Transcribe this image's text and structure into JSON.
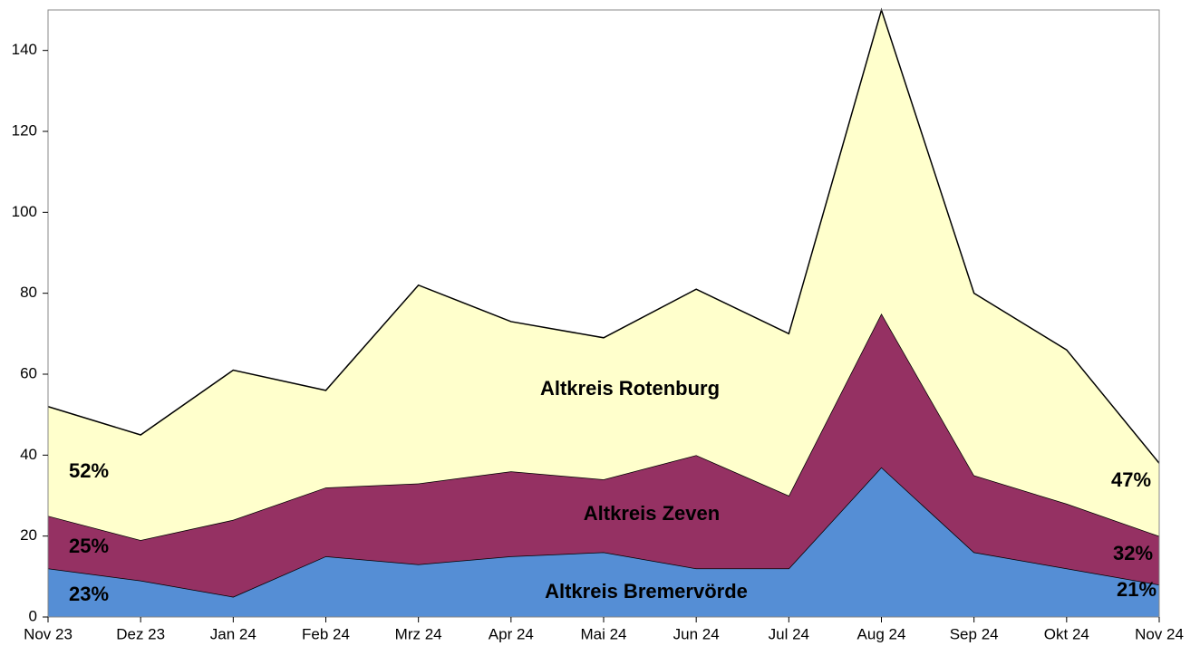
{
  "chart_data": {
    "type": "stacked_area",
    "categories": [
      "Nov 23",
      "Dez 23",
      "Jan 24",
      "Feb 24",
      "Mrz 24",
      "Apr 24",
      "Mai 24",
      "Jun 24",
      "Jul 24",
      "Aug 24",
      "Sep 24",
      "Okt 24",
      "Nov 24"
    ],
    "series": [
      {
        "name": "Altkreis Bremervörde",
        "color": "#558ed5",
        "values": [
          12,
          9,
          5,
          15,
          13,
          15,
          16,
          12,
          12,
          37,
          16,
          12,
          8
        ]
      },
      {
        "name": "Altkreis Zeven",
        "color": "#953163",
        "values": [
          13,
          10,
          19,
          17,
          20,
          21,
          18,
          28,
          18,
          38,
          19,
          16,
          12
        ]
      },
      {
        "name": "Altkreis Rotenburg",
        "color": "#ffffcc",
        "values": [
          27,
          26,
          37,
          24,
          49,
          37,
          35,
          41,
          40,
          75,
          45,
          38,
          18
        ]
      }
    ],
    "annotations": [
      "52%",
      "25%",
      "23%",
      "47%",
      "32%",
      "21%"
    ],
    "ylim": [
      0,
      150
    ],
    "yticks": [
      0,
      20,
      40,
      60,
      80,
      100,
      120,
      140
    ],
    "grid": false
  }
}
